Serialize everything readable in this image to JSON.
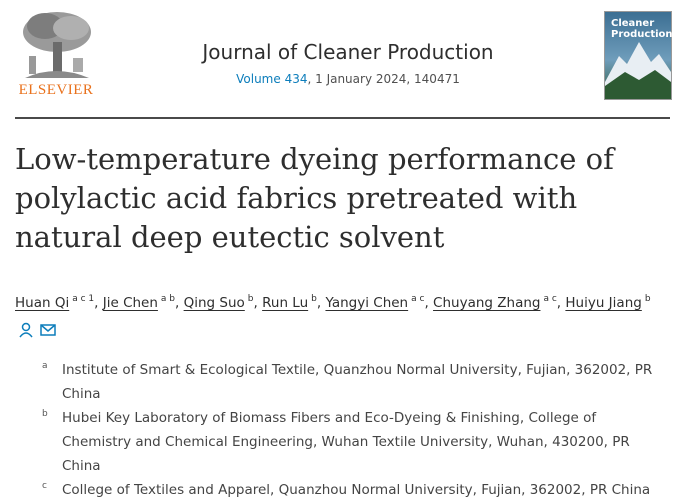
{
  "header": {
    "publisher": "ELSEVIER",
    "journal": "Journal of Cleaner Production",
    "volume_link": "Volume 434",
    "issue_info": ", 1 January 2024, 140471",
    "cover_title": "Cleaner Production"
  },
  "article": {
    "title": "Low-temperature dyeing performance of polylactic acid fabrics pretreated with natural deep eutectic solvent",
    "author_separator": ",",
    "authors": [
      {
        "name": "Huan Qi",
        "sup": "a c 1"
      },
      {
        "name": "Jie Chen",
        "sup": "a b"
      },
      {
        "name": "Qing Suo",
        "sup": "b"
      },
      {
        "name": "Run Lu",
        "sup": "b"
      },
      {
        "name": "Yangyi Chen",
        "sup": "a c"
      },
      {
        "name": "Chuyang Zhang",
        "sup": "a c"
      },
      {
        "name": "Huiyu Jiang",
        "sup": "b"
      }
    ],
    "affiliations": [
      {
        "label": "a",
        "text": "Institute of Smart & Ecological Textile, Quanzhou Normal University, Fujian, 362002, PR China"
      },
      {
        "label": "b",
        "text": "Hubei Key Laboratory of Biomass Fibers and Eco-Dyeing & Finishing, College of Chemistry and Chemical Engineering, Wuhan Textile University, Wuhan, 430200, PR China"
      },
      {
        "label": "c",
        "text": "College of Textiles and Apparel, Quanzhou Normal University, Fujian, 362002, PR China"
      }
    ]
  }
}
